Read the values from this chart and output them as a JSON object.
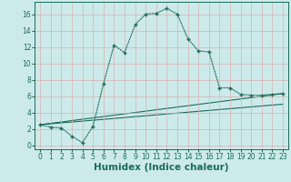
{
  "xlabel": "Humidex (Indice chaleur)",
  "background_color": "#cdeaea",
  "line_color": "#1a6b5a",
  "xlim": [
    -0.5,
    23.5
  ],
  "ylim": [
    -0.5,
    17.5
  ],
  "xticks": [
    0,
    1,
    2,
    3,
    4,
    5,
    6,
    7,
    8,
    9,
    10,
    11,
    12,
    13,
    14,
    15,
    16,
    17,
    18,
    19,
    20,
    21,
    22,
    23
  ],
  "yticks": [
    0,
    2,
    4,
    6,
    8,
    10,
    12,
    14,
    16
  ],
  "curve1_x": [
    0,
    1,
    2,
    3,
    4,
    5,
    6,
    7,
    8,
    9,
    10,
    11,
    12,
    13,
    14,
    15,
    16,
    17,
    18,
    19,
    20,
    21,
    22,
    23
  ],
  "curve1_y": [
    2.5,
    2.2,
    2.1,
    1.1,
    0.3,
    2.3,
    7.5,
    12.2,
    11.3,
    14.7,
    16.0,
    16.1,
    16.7,
    16.0,
    13.0,
    11.5,
    11.4,
    7.0,
    7.0,
    6.2,
    6.1,
    6.1,
    6.2,
    6.3
  ],
  "curve2_x": [
    0,
    23
  ],
  "curve2_y": [
    2.5,
    6.3
  ],
  "curve3_x": [
    0,
    23
  ],
  "curve3_y": [
    2.5,
    5.0
  ],
  "grid_color": "#e0f0f0",
  "tick_fontsize": 5.5,
  "label_fontsize": 7.5
}
